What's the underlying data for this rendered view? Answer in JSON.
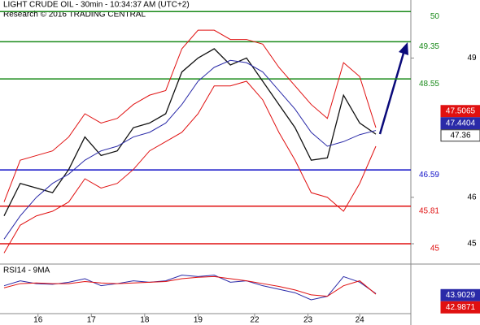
{
  "header": {
    "title": "LIGHT CRUDE OIL - 30min - 10:34:37 AM (UTC+2)",
    "subtitle": "Research © 2016 TRADING CENTRAL"
  },
  "chart_data": [
    {
      "type": "line",
      "xlim": [
        0,
        23
      ],
      "xticks": [
        {
          "value": 2.1,
          "label": "16"
        },
        {
          "value": 5.4,
          "label": "17"
        },
        {
          "value": 8.7,
          "label": "18"
        },
        {
          "value": 12.0,
          "label": "19"
        },
        {
          "value": 15.5,
          "label": "22"
        },
        {
          "value": 18.8,
          "label": "23"
        },
        {
          "value": 22.0,
          "label": "24"
        }
      ],
      "ylim": [
        44.65,
        50.25
      ],
      "yticks": [
        45,
        46,
        49
      ],
      "series": [
        {
          "color": "#111111",
          "values": [
            45.6,
            46.3,
            46.2,
            46.1,
            46.6,
            47.3,
            46.9,
            47.0,
            47.5,
            47.6,
            47.8,
            48.7,
            49.0,
            49.2,
            48.85,
            49.0,
            48.5,
            48.0,
            47.5,
            46.8,
            46.85,
            48.2,
            47.6,
            47.36
          ]
        },
        {
          "color": "#2a2aa8",
          "values": [
            45.1,
            45.6,
            46.0,
            46.3,
            46.5,
            46.8,
            47.0,
            47.1,
            47.3,
            47.4,
            47.6,
            48.0,
            48.5,
            48.8,
            48.95,
            48.9,
            48.7,
            48.3,
            47.9,
            47.4,
            47.1,
            47.2,
            47.35,
            47.44
          ]
        },
        {
          "color": "#e01010",
          "values": [
            45.9,
            46.8,
            46.9,
            47.0,
            47.3,
            47.8,
            47.6,
            47.7,
            48.0,
            48.2,
            48.3,
            49.2,
            49.6,
            49.6,
            49.4,
            49.4,
            49.3,
            48.8,
            48.4,
            48.0,
            47.7,
            48.9,
            48.6,
            47.5
          ]
        },
        {
          "color": "#e01010",
          "values": [
            44.8,
            45.4,
            45.6,
            45.7,
            45.9,
            46.4,
            46.2,
            46.3,
            46.6,
            47.0,
            47.2,
            47.4,
            47.8,
            48.4,
            48.4,
            48.5,
            48.1,
            47.4,
            46.8,
            46.1,
            46.0,
            45.7,
            46.3,
            47.1
          ]
        }
      ],
      "levels": [
        {
          "value": 50,
          "color": "#1a8a1a"
        },
        {
          "value": 49.35,
          "color": "#1a8a1a"
        },
        {
          "value": 48.55,
          "color": "#1a8a1a"
        },
        {
          "value": 46.59,
          "color": "#1010c8"
        },
        {
          "value": 45.81,
          "color": "#e01010"
        },
        {
          "value": 45,
          "color": "#e01010"
        }
      ],
      "price_tags": [
        {
          "value": 47.5065,
          "color": "#e01010"
        },
        {
          "value": 47.4404,
          "color": "#2a2aa8"
        },
        {
          "value": 47.36,
          "color": "#ffffff"
        }
      ]
    },
    {
      "type": "line",
      "title": "RSI14 - 9MA",
      "ylim": [
        20,
        80
      ],
      "series": [
        {
          "color": "#2a2aa8",
          "values": [
            55,
            62,
            58,
            57,
            60,
            65,
            55,
            58,
            62,
            60,
            62,
            70,
            68,
            70,
            60,
            62,
            55,
            50,
            45,
            35,
            40,
            68,
            60,
            43.9
          ]
        },
        {
          "color": "#e01010",
          "values": [
            52,
            58,
            59,
            58,
            58,
            61,
            59,
            58,
            59,
            60,
            61,
            65,
            67,
            68,
            65,
            62,
            58,
            54,
            49,
            42,
            40,
            55,
            62,
            43.0
          ]
        }
      ],
      "price_tags": [
        {
          "value": 43.9029,
          "color": "#2a2aa8"
        },
        {
          "value": 42.9871,
          "color": "#e01010"
        }
      ]
    }
  ]
}
